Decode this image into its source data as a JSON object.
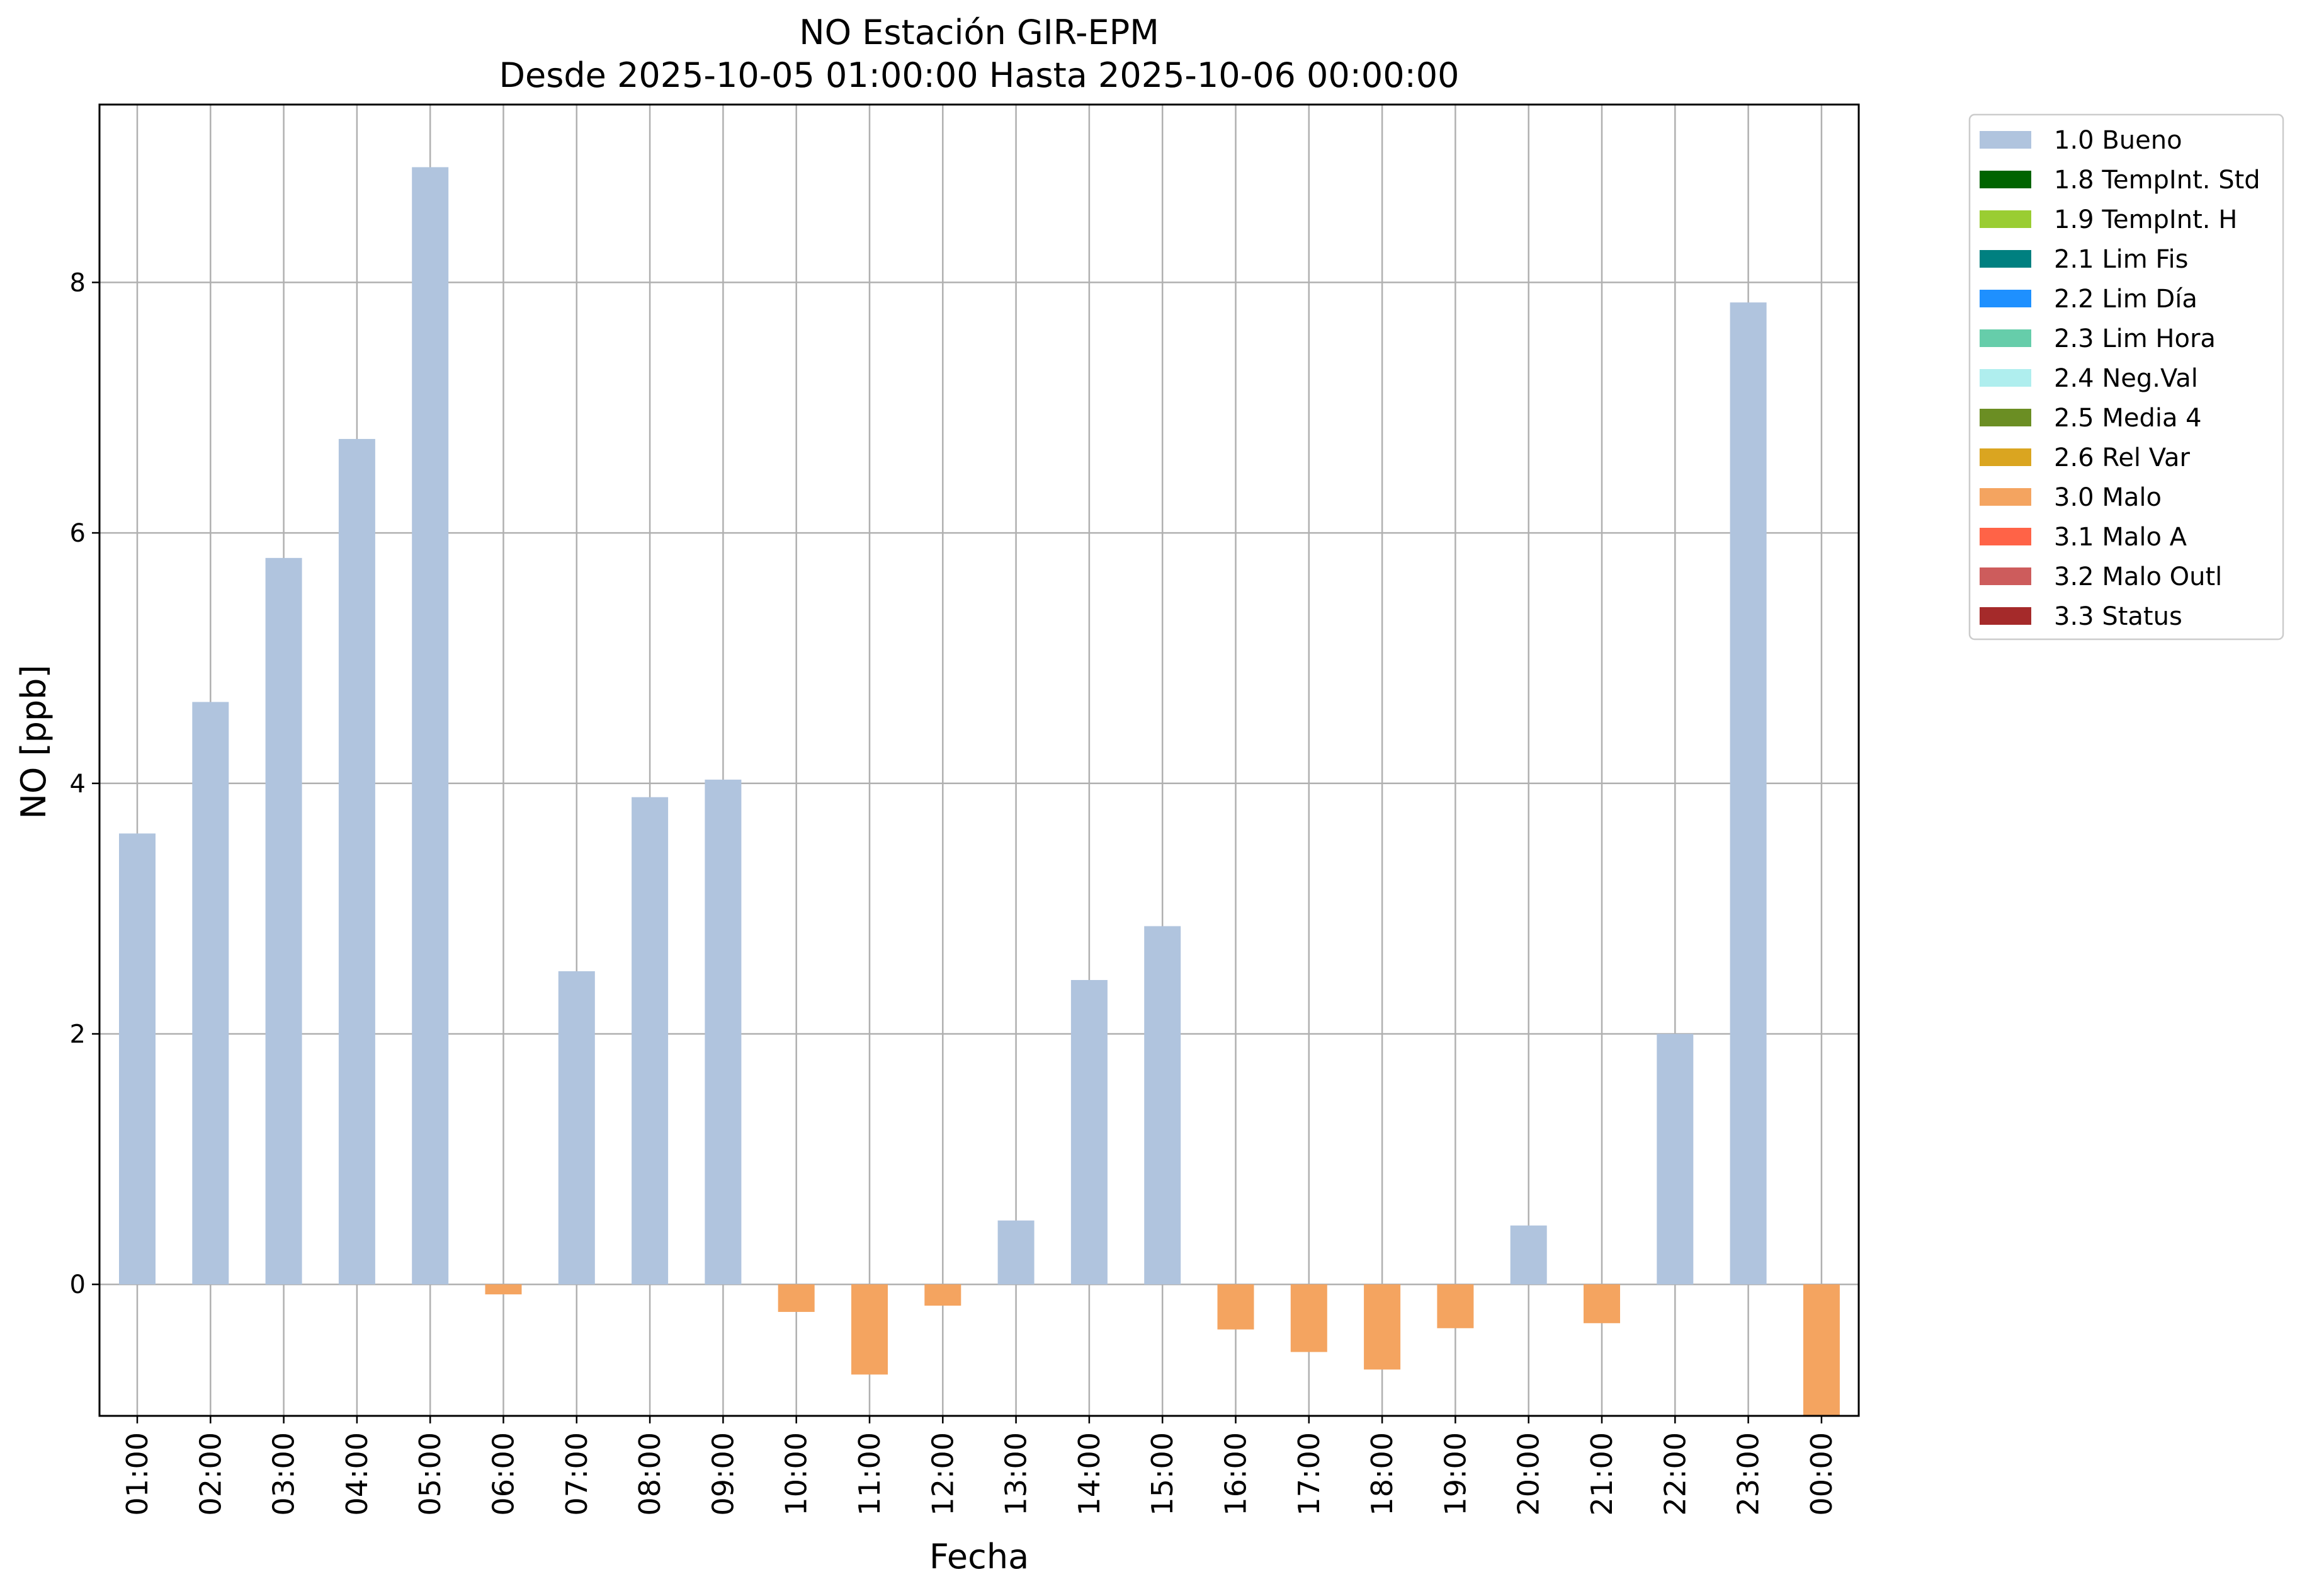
{
  "chart_data": {
    "type": "bar",
    "title": "NO Estación GIR-EPM",
    "subtitle": "Desde 2025-10-05 01:00:00 Hasta 2025-10-06 00:00:00",
    "xlabel": "Fecha",
    "ylabel": "NO [ppb]",
    "ylim": [
      -1.05,
      9.42
    ],
    "yticks": [
      0,
      2,
      4,
      6,
      8
    ],
    "grid": true,
    "legend_position": "outside-right",
    "categories": [
      "01:00",
      "02:00",
      "03:00",
      "04:00",
      "05:00",
      "06:00",
      "07:00",
      "08:00",
      "09:00",
      "10:00",
      "11:00",
      "12:00",
      "13:00",
      "14:00",
      "15:00",
      "16:00",
      "17:00",
      "18:00",
      "19:00",
      "20:00",
      "21:00",
      "22:00",
      "23:00",
      "00:00"
    ],
    "values": [
      3.6,
      4.65,
      5.8,
      6.75,
      8.92,
      -0.08,
      2.5,
      3.89,
      4.03,
      -0.22,
      -0.72,
      -0.17,
      0.51,
      2.43,
      2.86,
      -0.36,
      -0.54,
      -0.68,
      -0.35,
      0.47,
      -0.31,
      2.0,
      7.84,
      -1.05
    ],
    "flags": [
      "1.0 Bueno",
      "1.0 Bueno",
      "1.0 Bueno",
      "1.0 Bueno",
      "1.0 Bueno",
      "3.0 Malo",
      "1.0 Bueno",
      "1.0 Bueno",
      "1.0 Bueno",
      "3.0 Malo",
      "3.0 Malo",
      "3.0 Malo",
      "1.0 Bueno",
      "1.0 Bueno",
      "1.0 Bueno",
      "3.0 Malo",
      "3.0 Malo",
      "3.0 Malo",
      "3.0 Malo",
      "1.0 Bueno",
      "3.0 Malo",
      "1.0 Bueno",
      "1.0 Bueno",
      "3.0 Malo"
    ],
    "legend": [
      {
        "label": "1.0 Bueno",
        "color": "#b0c4de"
      },
      {
        "label": "1.8 TempInt. Std",
        "color": "#006400"
      },
      {
        "label": "1.9 TempInt. H",
        "color": "#9acd32"
      },
      {
        "label": "2.1 Lim Fis",
        "color": "#008080"
      },
      {
        "label": "2.2 Lim Día",
        "color": "#1e90ff"
      },
      {
        "label": "2.3 Lim Hora",
        "color": "#66cdaa"
      },
      {
        "label": "2.4 Neg.Val",
        "color": "#afeeee"
      },
      {
        "label": "2.5 Media 4",
        "color": "#6b8e23"
      },
      {
        "label": "2.6 Rel Var",
        "color": "#daa520"
      },
      {
        "label": "3.0 Malo",
        "color": "#f4a460"
      },
      {
        "label": "3.1 Malo A",
        "color": "#ff6347"
      },
      {
        "label": "3.2 Malo Outl",
        "color": "#cd5c5c"
      },
      {
        "label": "3.3 Status",
        "color": "#a52a2a"
      }
    ]
  }
}
